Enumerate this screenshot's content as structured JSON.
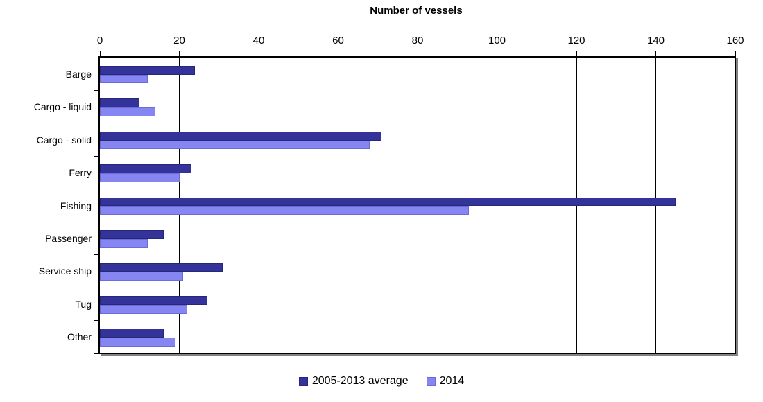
{
  "chart_data": {
    "type": "bar",
    "orientation": "horizontal",
    "title": "Number of vessels",
    "categories": [
      "Barge",
      "Cargo - liquid",
      "Cargo - solid",
      "Ferry",
      "Fishing",
      "Passenger",
      "Service ship",
      "Tug",
      "Other"
    ],
    "series": [
      {
        "name": "2005-2013 average",
        "color": "#333399",
        "border_color": "#26267a",
        "values": [
          24,
          10,
          71,
          23,
          145,
          16,
          31,
          27,
          16
        ]
      },
      {
        "name": "2014",
        "color": "#8686f2",
        "border_color": "#6b6bd9",
        "values": [
          12,
          14,
          68,
          20,
          93,
          12,
          21,
          22,
          19
        ]
      }
    ],
    "x_axis": {
      "min": 0,
      "max": 160,
      "tick_interval": 20,
      "tick_labels": [
        "0",
        "20",
        "40",
        "60",
        "80",
        "100",
        "120",
        "140",
        "160"
      ]
    },
    "grid": true,
    "legend_position": "bottom",
    "axis_color": "#000000",
    "shadow_color": "#828282"
  }
}
